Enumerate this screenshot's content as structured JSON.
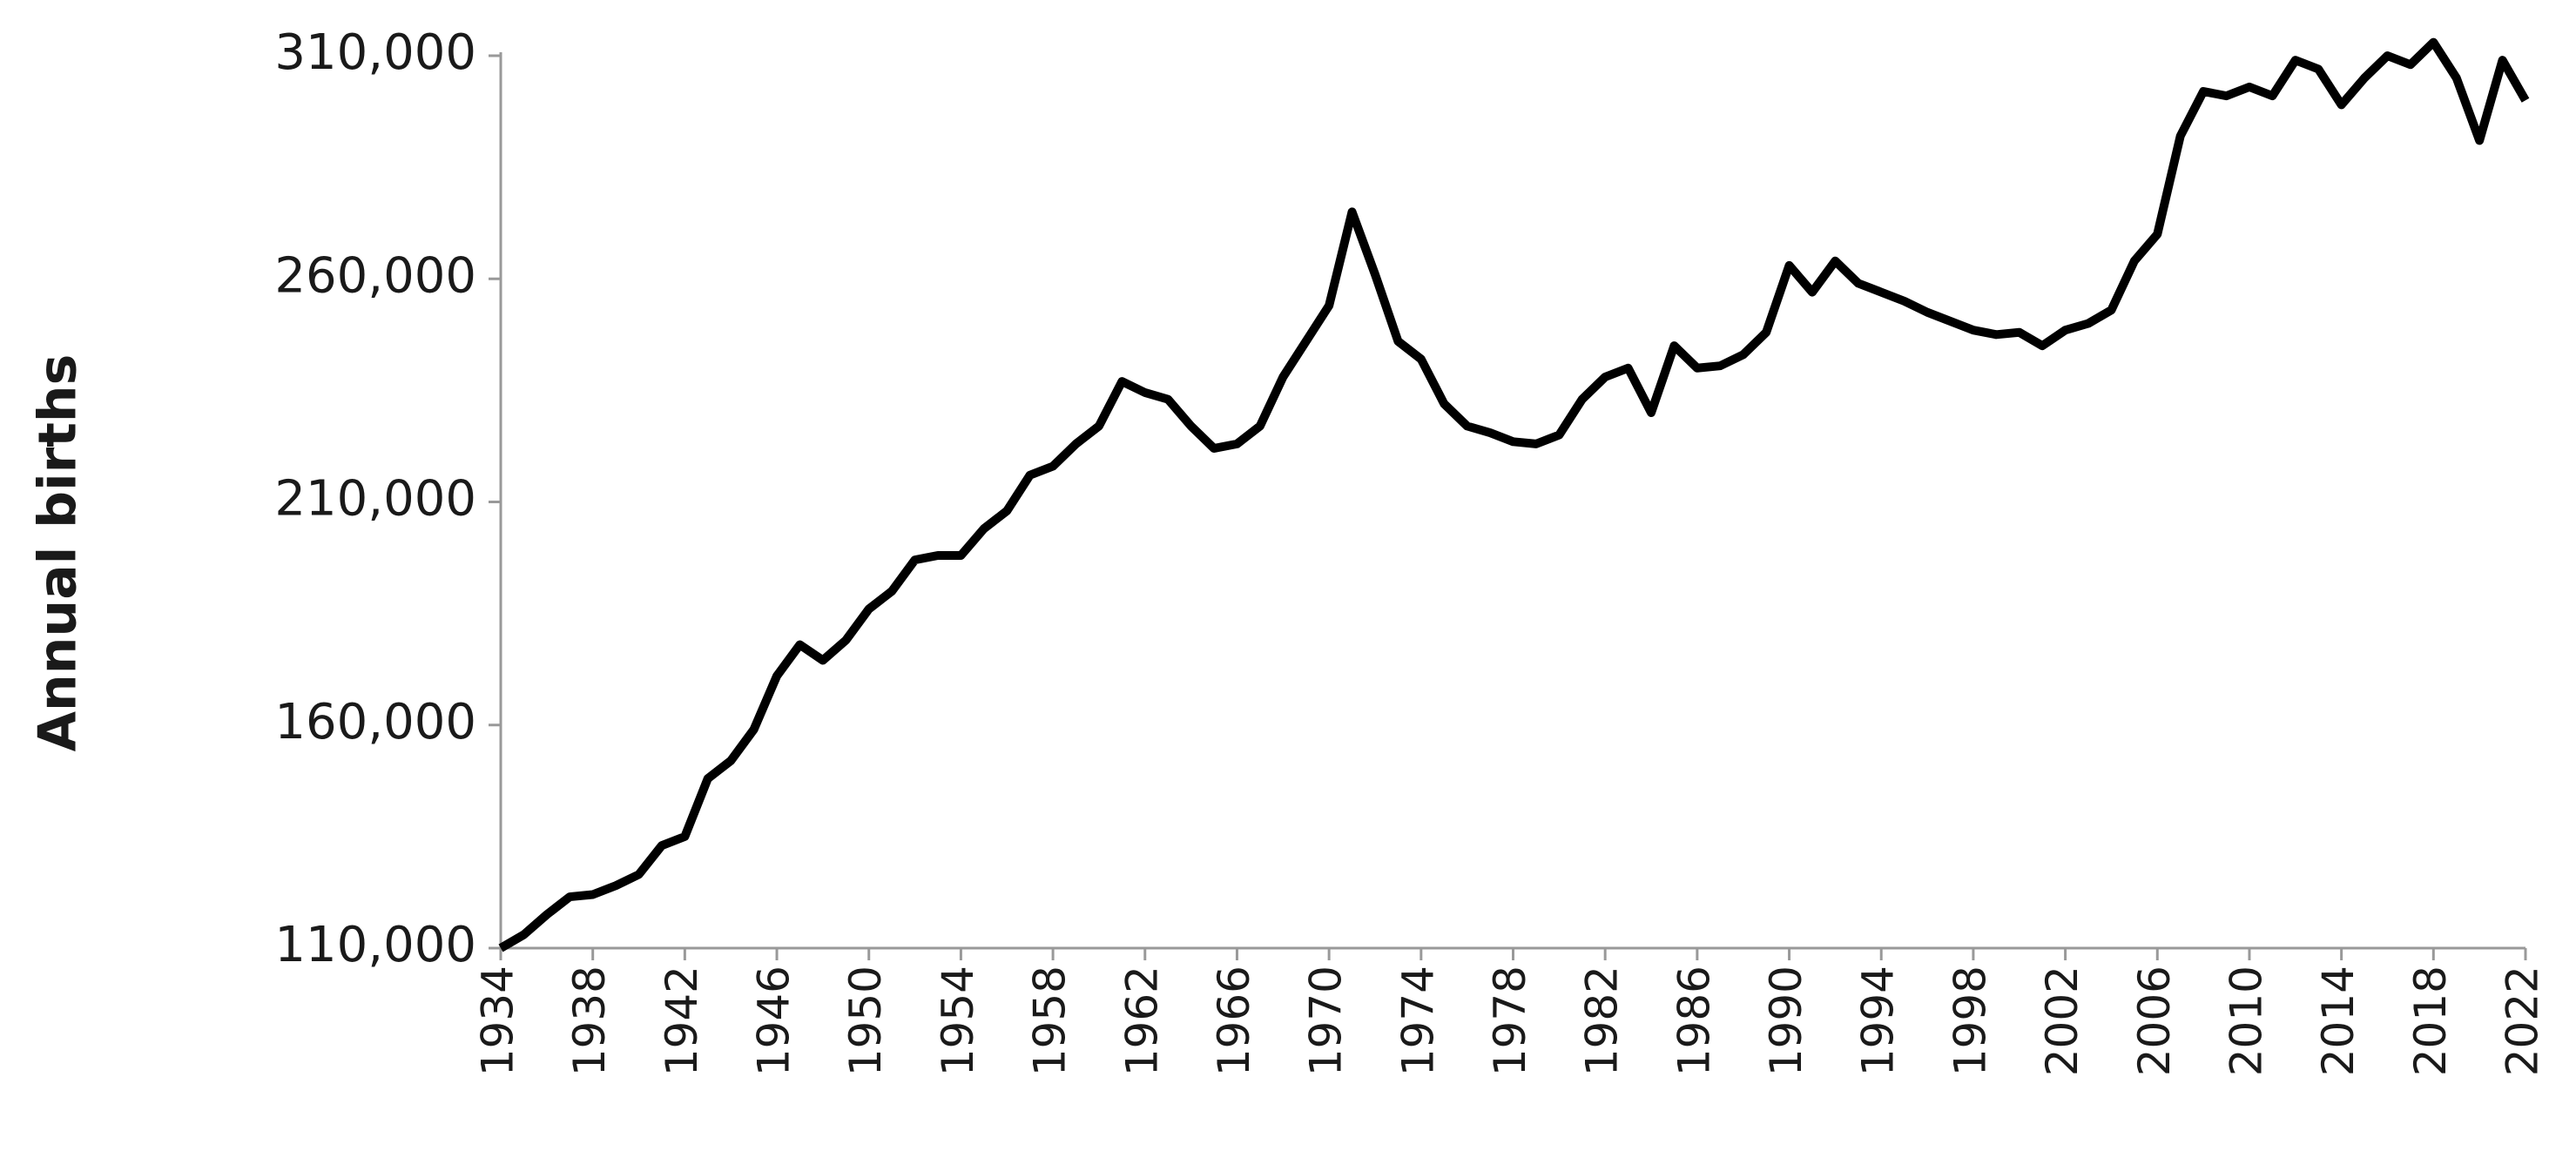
{
  "chart_data": {
    "type": "line",
    "y_label": "Annual births",
    "x": [
      1934,
      1935,
      1936,
      1937,
      1938,
      1939,
      1940,
      1941,
      1942,
      1943,
      1944,
      1945,
      1946,
      1947,
      1948,
      1949,
      1950,
      1951,
      1952,
      1953,
      1954,
      1955,
      1956,
      1957,
      1958,
      1959,
      1960,
      1961,
      1962,
      1963,
      1964,
      1965,
      1966,
      1967,
      1968,
      1969,
      1970,
      1971,
      1972,
      1973,
      1974,
      1975,
      1976,
      1977,
      1978,
      1979,
      1980,
      1981,
      1982,
      1983,
      1984,
      1985,
      1986,
      1987,
      1988,
      1989,
      1990,
      1991,
      1992,
      1993,
      1994,
      1995,
      1996,
      1997,
      1998,
      1999,
      2000,
      2001,
      2002,
      2003,
      2004,
      2005,
      2006,
      2007,
      2008,
      2009,
      2010,
      2011,
      2012,
      2013,
      2014,
      2015,
      2016,
      2017,
      2018,
      2019,
      2020,
      2021,
      2022
    ],
    "series": [
      {
        "color": "#000000",
        "values": [
          110000,
          113000,
          117500,
          121500,
          122000,
          124000,
          126500,
          133000,
          135000,
          148000,
          152000,
          159000,
          171000,
          178000,
          174500,
          179000,
          186000,
          190000,
          197000,
          198000,
          198000,
          204000,
          208000,
          216000,
          218000,
          223000,
          227000,
          237000,
          234500,
          233000,
          227000,
          222000,
          223000,
          227000,
          238000,
          246000,
          254000,
          275000,
          261000,
          246000,
          242000,
          232000,
          227000,
          225500,
          223500,
          223000,
          225000,
          233000,
          238000,
          240000,
          230000,
          245000,
          240000,
          240500,
          243000,
          248000,
          263000,
          257000,
          264000,
          259000,
          257000,
          255000,
          252500,
          250500,
          248500,
          247500,
          248000,
          245000,
          248500,
          250000,
          253000,
          264000,
          270000,
          292000,
          302000,
          301000,
          303000,
          301000,
          309000,
          307000,
          299000,
          305000,
          310000,
          308000,
          313000,
          305000,
          291000,
          309000,
          300000
        ]
      }
    ],
    "xlim": [
      1934,
      2022
    ],
    "xticks": [
      1934,
      1938,
      1942,
      1946,
      1950,
      1954,
      1958,
      1962,
      1966,
      1970,
      1974,
      1978,
      1982,
      1986,
      1990,
      1994,
      1998,
      2002,
      2006,
      2010,
      2014,
      2018,
      2022
    ],
    "ylim": [
      110000,
      310000
    ],
    "yticks": [
      {
        "value": 110000,
        "label": "110,000"
      },
      {
        "value": 160000,
        "label": "160,000"
      },
      {
        "value": 210000,
        "label": "210,000"
      },
      {
        "value": 260000,
        "label": "260,000"
      },
      {
        "value": 310000,
        "label": "310,000"
      }
    ]
  }
}
